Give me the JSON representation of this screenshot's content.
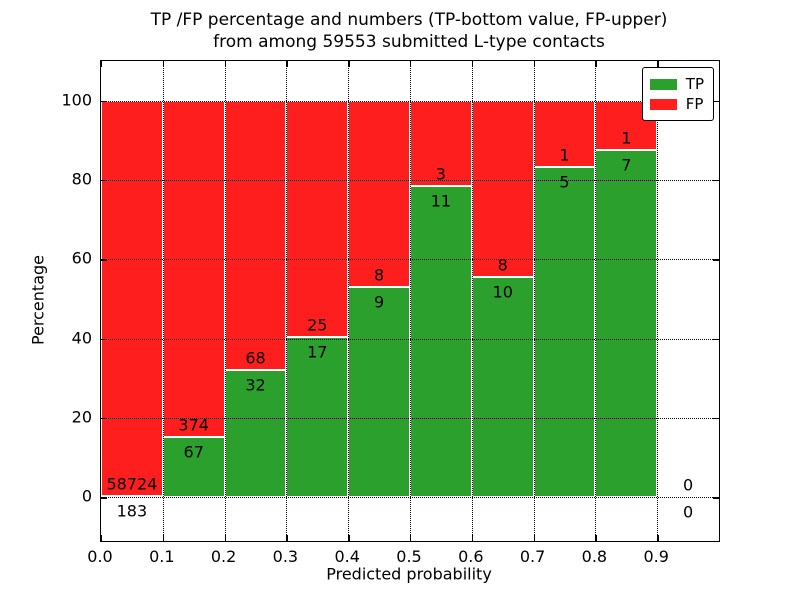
{
  "chart_data": {
    "type": "bar",
    "stacked": true,
    "normalized_to": 100,
    "title": "TP /FP percentage and numbers (TP-bottom value, FP-upper)\nfrom among 59553 submitted L-type contacts",
    "title_lines": [
      "TP /FP percentage and numbers (TP-bottom value, FP-upper)",
      "from among 59553 submitted L-type contacts"
    ],
    "xlabel": "Predicted probability",
    "ylabel": "Percentage",
    "xlim": [
      0.0,
      1.0
    ],
    "ylim": [
      -11,
      110
    ],
    "bin_width": 0.1,
    "xticks": [
      "0.0",
      "0.1",
      "0.2",
      "0.3",
      "0.4",
      "0.5",
      "0.6",
      "0.7",
      "0.8",
      "0.9"
    ],
    "yticks": [
      "0",
      "20",
      "40",
      "60",
      "80",
      "100"
    ],
    "ytick_values": [
      0,
      20,
      40,
      60,
      80,
      100
    ],
    "grid": "dotted black, both axes, drawn over bars",
    "total_contacts": 59553,
    "bins": [
      {
        "range": "0.0-0.1",
        "tp": 183,
        "fp": 58724,
        "tp_percent": 0.31
      },
      {
        "range": "0.1-0.2",
        "tp": 67,
        "fp": 374,
        "tp_percent": 15.19
      },
      {
        "range": "0.2-0.3",
        "tp": 32,
        "fp": 68,
        "tp_percent": 32.0
      },
      {
        "range": "0.3-0.4",
        "tp": 17,
        "fp": 25,
        "tp_percent": 40.48
      },
      {
        "range": "0.4-0.5",
        "tp": 9,
        "fp": 8,
        "tp_percent": 52.94
      },
      {
        "range": "0.5-0.6",
        "tp": 11,
        "fp": 3,
        "tp_percent": 78.57
      },
      {
        "range": "0.6-0.7",
        "tp": 10,
        "fp": 8,
        "tp_percent": 55.56
      },
      {
        "range": "0.7-0.8",
        "tp": 5,
        "fp": 1,
        "tp_percent": 83.33
      },
      {
        "range": "0.8-0.9",
        "tp": 7,
        "fp": 1,
        "tp_percent": 87.5
      },
      {
        "range": "0.9-1.0",
        "tp": 0,
        "fp": 0,
        "tp_percent": null
      }
    ],
    "series": [
      {
        "name": "TP",
        "color": "#2CA02C"
      },
      {
        "name": "FP",
        "color": "#FF1E1E"
      }
    ],
    "legend": {
      "position": "upper right",
      "entries": [
        {
          "label": "TP",
          "color": "#2CA02C"
        },
        {
          "label": "FP",
          "color": "#FF1E1E"
        }
      ]
    }
  }
}
